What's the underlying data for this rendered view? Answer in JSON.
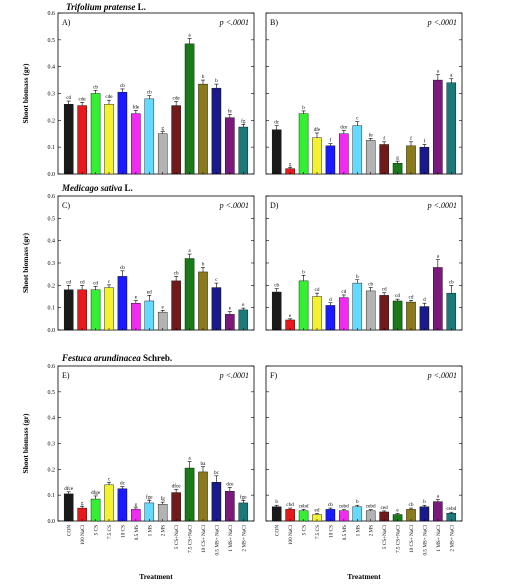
{
  "species_titles": [
    {
      "name": "Trifolium pratense",
      "author": "L."
    },
    {
      "name": "Medicago sativa",
      "author": "L."
    },
    {
      "name": "Festuca arundinacea",
      "author": "Schreb."
    }
  ],
  "x_axis_title": "Treatment",
  "y_axis_title": "Shoot biomass (gr)",
  "colors": [
    "#1a1a1a",
    "#e8191c",
    "#33f033",
    "#f2f233",
    "#1a1aff",
    "#f22af2",
    "#66d9ff",
    "#b3b3b3",
    "#701a1a",
    "#1a7a1a",
    "#8a7a1a",
    "#1a1a8a",
    "#7a1a7a",
    "#1a7a7a"
  ],
  "chart_data": [
    {
      "panel": "A)",
      "type": "bar",
      "p_value": "p <.0001",
      "ylim": [
        0,
        0.6
      ],
      "yticks": [
        "0.0",
        "0.1",
        "0.2",
        "0.3",
        "0.4",
        "0.5",
        "0.6"
      ],
      "categories": [
        "CON",
        "100 NaCl",
        "5 CS",
        "7.5 CS",
        "10 CS",
        "0.5 MS",
        "1 MS",
        "2 MS",
        "5 CS+NaCl",
        "7.5 CS+NaCl",
        "10 CS+NaCl",
        "0.5 MS+NaCl",
        "1 MS+NaCl",
        "2 MS+NaCl"
      ],
      "values": [
        0.26,
        0.255,
        0.3,
        0.26,
        0.305,
        0.225,
        0.28,
        0.15,
        0.255,
        0.485,
        0.335,
        0.32,
        0.21,
        0.175
      ],
      "errors": [
        0.012,
        0.012,
        0.012,
        0.015,
        0.012,
        0.012,
        0.012,
        0.008,
        0.015,
        0.02,
        0.015,
        0.015,
        0.012,
        0.01
      ],
      "letters": [
        "cd",
        "cde",
        "cb",
        "cde",
        "cb",
        "fde",
        "cb",
        "g",
        "cde",
        "a",
        "b",
        "b",
        "fe",
        "fg"
      ]
    },
    {
      "panel": "B)",
      "type": "bar",
      "p_value": "p <.0001",
      "ylim": [
        0,
        0.6
      ],
      "categories": [
        "CON",
        "100 NaCl",
        "5 CS",
        "7.5 CS",
        "10 CS",
        "0.5 MS",
        "1 MS",
        "2 MS",
        "5 CS+NaCl",
        "7.5 CS+NaCl",
        "10 CS+NaCl",
        "0.5 MS+NaCl",
        "1 MS+NaCl",
        "2 MS+NaCl"
      ],
      "values": [
        0.165,
        0.02,
        0.225,
        0.135,
        0.105,
        0.15,
        0.18,
        0.125,
        0.11,
        0.04,
        0.105,
        0.1,
        0.35,
        0.34
      ],
      "errors": [
        0.015,
        0.005,
        0.01,
        0.018,
        0.008,
        0.012,
        0.015,
        0.008,
        0.01,
        0.008,
        0.015,
        0.01,
        0.02,
        0.015
      ],
      "letters": [
        "dc",
        "g",
        "b",
        "dfe",
        "f",
        "dce",
        "c",
        "fe",
        "f",
        "g",
        "f",
        "f",
        "a",
        "a"
      ]
    },
    {
      "panel": "C)",
      "type": "bar",
      "p_value": "p <.0001",
      "ylim": [
        0,
        0.6
      ],
      "yticks": [
        "0.0",
        "0.1",
        "0.2",
        "0.3",
        "0.4",
        "0.5",
        "0.6"
      ],
      "categories": [
        "CON",
        "100 NaCl",
        "5 CS",
        "7.5 CS",
        "10 CS",
        "0.5 MS",
        "1 MS",
        "2 MS",
        "5 CS+NaCl",
        "7.5 CS+NaCl",
        "10 CS+NaCl",
        "0.5 MS+NaCl",
        "1 MS+NaCl",
        "2 MS+NaCl"
      ],
      "values": [
        0.18,
        0.18,
        0.18,
        0.19,
        0.24,
        0.12,
        0.13,
        0.08,
        0.22,
        0.32,
        0.26,
        0.19,
        0.07,
        0.09
      ],
      "errors": [
        0.02,
        0.02,
        0.015,
        0.012,
        0.025,
        0.012,
        0.025,
        0.008,
        0.02,
        0.02,
        0.02,
        0.02,
        0.012,
        0.008
      ],
      "letters": [
        "cd",
        "cd",
        "cd",
        "c",
        "cb",
        "e",
        "ed",
        "e",
        "cb",
        "a",
        "b",
        "c",
        "e",
        "e"
      ]
    },
    {
      "panel": "D)",
      "type": "bar",
      "p_value": "p <.0001",
      "ylim": [
        0,
        0.6
      ],
      "categories": [
        "CON",
        "100 NaCl",
        "5 CS",
        "7.5 CS",
        "10 CS",
        "0.5 MS",
        "1 MS",
        "2 MS",
        "5 CS+NaCl",
        "7.5 CS+NaCl",
        "10 CS+NaCl",
        "0.5 MS+NaCl",
        "1 MS+NaCl",
        "2 MS+NaCl"
      ],
      "values": [
        0.17,
        0.045,
        0.22,
        0.15,
        0.11,
        0.145,
        0.21,
        0.175,
        0.155,
        0.13,
        0.125,
        0.105,
        0.28,
        0.165
      ],
      "errors": [
        0.015,
        0.005,
        0.025,
        0.015,
        0.012,
        0.012,
        0.015,
        0.015,
        0.012,
        0.008,
        0.008,
        0.015,
        0.035,
        0.035
      ],
      "letters": [
        "cb",
        "e",
        "b",
        "cd",
        "d",
        "cd",
        "b",
        "cb",
        "cd",
        "cd",
        "cd",
        "d",
        "a",
        "cb"
      ]
    },
    {
      "panel": "E)",
      "type": "bar",
      "p_value": "p <.0001",
      "ylim": [
        0,
        0.6
      ],
      "yticks": [
        "0.0",
        "0.1",
        "0.2",
        "0.3",
        "0.4",
        "0.5",
        "0.6"
      ],
      "categories": [
        "CON",
        "100 NaCl",
        "5 CS",
        "7.5 CS",
        "10 CS",
        "0.5 MS",
        "1 MS",
        "2 MS",
        "5 CS+NaCl",
        "7.5 CS+NaCl",
        "10 CS+ NaCl",
        "0.5 MS+ NaCl",
        "1 MS+ NaCl",
        "2 MS+ NaCl"
      ],
      "values": [
        0.105,
        0.05,
        0.085,
        0.14,
        0.125,
        0.045,
        0.07,
        0.065,
        0.11,
        0.205,
        0.19,
        0.15,
        0.115,
        0.07
      ],
      "errors": [
        0.008,
        0.006,
        0.012,
        0.01,
        0.008,
        0.006,
        0.01,
        0.008,
        0.012,
        0.025,
        0.02,
        0.025,
        0.015,
        0.01
      ],
      "letters": [
        "dfce",
        "g",
        "dfge",
        "c",
        "dc",
        "g",
        "fge",
        "fg",
        "dfce",
        "a",
        "ba",
        "bc",
        "dce",
        "fge"
      ]
    },
    {
      "panel": "F)",
      "type": "bar",
      "p_value": "p <.0001",
      "ylim": [
        0,
        0.6
      ],
      "categories": [
        "CON",
        "100 NaCl",
        "5 CS",
        "7.5 CS",
        "10 CS",
        "0.5 MS",
        "1 MS",
        "2 MS",
        "5 CS+NaCl",
        "7.5 CS+NaCl",
        "10 CS+ NaCl",
        "0.5 MS+ NaCl",
        "1 MS+ NaCl",
        "2 MS+ NaCl"
      ],
      "values": [
        0.055,
        0.045,
        0.04,
        0.025,
        0.045,
        0.04,
        0.055,
        0.04,
        0.035,
        0.025,
        0.045,
        0.055,
        0.075,
        0.03
      ],
      "errors": [
        0.006,
        0.005,
        0.005,
        0.004,
        0.005,
        0.004,
        0.006,
        0.004,
        0.004,
        0.004,
        0.005,
        0.006,
        0.008,
        0.004
      ],
      "letters": [
        "b",
        "cbd",
        "cebd",
        "ed",
        "cb",
        "cebd",
        "b",
        "cebd",
        "ced",
        "e",
        "cb",
        "b",
        "a",
        "cebd"
      ]
    }
  ]
}
